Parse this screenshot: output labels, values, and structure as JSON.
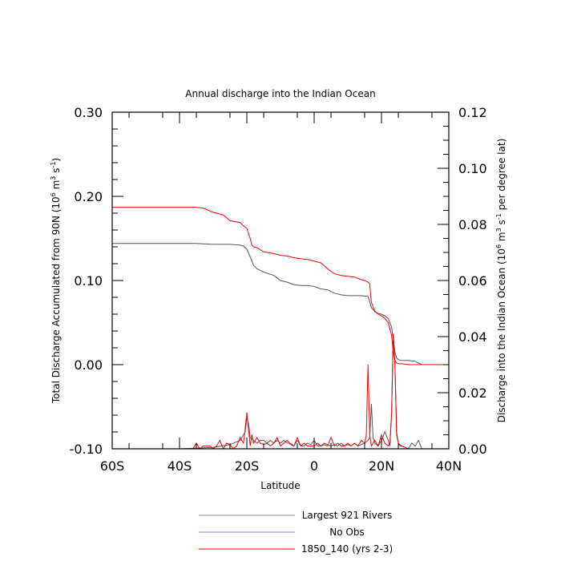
{
  "chart_data": {
    "type": "line",
    "title": "Annual discharge into the Indian Ocean",
    "xlabel": "Latitude",
    "ylabel_left": "Total Discharge Accumulated from 90N (10^6 m^3 s^-1)",
    "ylabel_right": "Discharge into the Indian Ocean (10^6 m^3 s^-1 per degree lat)",
    "xlim": [
      -60,
      40
    ],
    "ylim_left": [
      -0.1,
      0.3
    ],
    "ylim_right": [
      0.0,
      0.12
    ],
    "x_ticks": [
      {
        "value": -60,
        "label": "60S"
      },
      {
        "value": -40,
        "label": "40S"
      },
      {
        "value": -20,
        "label": "20S"
      },
      {
        "value": 0,
        "label": "0"
      },
      {
        "value": 20,
        "label": "20N"
      },
      {
        "value": 40,
        "label": "40N"
      }
    ],
    "y_left_ticks": [
      {
        "value": -0.1,
        "label": "-0.10"
      },
      {
        "value": 0.0,
        "label": "0.00"
      },
      {
        "value": 0.1,
        "label": "0.10"
      },
      {
        "value": 0.2,
        "label": "0.20"
      },
      {
        "value": 0.3,
        "label": "0.30"
      }
    ],
    "y_right_ticks": [
      {
        "value": 0.0,
        "label": "0.00"
      },
      {
        "value": 0.02,
        "label": "0.02"
      },
      {
        "value": 0.04,
        "label": "0.04"
      },
      {
        "value": 0.06,
        "label": "0.06"
      },
      {
        "value": 0.08,
        "label": "0.08"
      },
      {
        "value": 0.1,
        "label": "0.10"
      },
      {
        "value": 0.12,
        "label": "0.12"
      }
    ],
    "legend": {
      "placement": "bottom",
      "entries": [
        {
          "label": "Largest 921 Rivers",
          "color": "#888888"
        },
        {
          "label": "No Obs",
          "color": "#8080ff"
        },
        {
          "label": "1850_140 (yrs 2-3)",
          "color": "#ff0000"
        }
      ]
    },
    "series": [
      {
        "name": "Largest 921 Rivers",
        "axis": "left",
        "color": "#555555",
        "x": [
          -60,
          -50,
          -40,
          -35,
          -30,
          -25,
          -22,
          -21,
          -20,
          -19,
          -18,
          -17,
          -15,
          -12,
          -10,
          -8,
          -6,
          -4,
          -2,
          0,
          2,
          4,
          6,
          8,
          10,
          12,
          14,
          16,
          16.5,
          17,
          18,
          19,
          20,
          21,
          22,
          23,
          23.5,
          24,
          24.5,
          25,
          26,
          28,
          30,
          31,
          32,
          34,
          36,
          38,
          40
        ],
        "y": [
          0.144,
          0.144,
          0.144,
          0.144,
          0.143,
          0.143,
          0.142,
          0.141,
          0.137,
          0.128,
          0.118,
          0.114,
          0.11,
          0.106,
          0.1,
          0.098,
          0.095,
          0.094,
          0.094,
          0.093,
          0.09,
          0.089,
          0.085,
          0.083,
          0.082,
          0.082,
          0.082,
          0.081,
          0.075,
          0.068,
          0.063,
          0.061,
          0.06,
          0.058,
          0.055,
          0.045,
          0.03,
          0.015,
          0.008,
          0.006,
          0.005,
          0.005,
          0.004,
          0.002,
          0.0,
          0.0,
          0.0,
          0.0,
          0.0
        ]
      },
      {
        "name": "1850_140 (yrs 2-3)",
        "axis": "left",
        "color": "#ff0000",
        "x": [
          -60,
          -50,
          -40,
          -35,
          -33,
          -30,
          -28,
          -27,
          -25,
          -22,
          -21,
          -20,
          -19,
          -18.5,
          -18,
          -17,
          -15,
          -12,
          -10,
          -8,
          -6,
          -4,
          -2,
          0,
          2,
          4,
          6,
          8,
          10,
          12,
          14,
          15,
          16,
          16.5,
          17,
          18,
          19,
          20,
          21,
          22,
          23,
          23.5,
          24,
          24.5,
          25,
          26,
          28,
          30,
          32,
          34,
          36,
          38,
          40
        ],
        "y": [
          0.187,
          0.187,
          0.187,
          0.187,
          0.186,
          0.181,
          0.179,
          0.178,
          0.171,
          0.169,
          0.165,
          0.162,
          0.15,
          0.142,
          0.14,
          0.139,
          0.134,
          0.132,
          0.13,
          0.129,
          0.127,
          0.126,
          0.125,
          0.123,
          0.121,
          0.114,
          0.108,
          0.106,
          0.105,
          0.104,
          0.101,
          0.1,
          0.098,
          0.096,
          0.074,
          0.064,
          0.06,
          0.058,
          0.055,
          0.05,
          0.035,
          0.015,
          0.005,
          0.002,
          0.001,
          0.001,
          0.0,
          0.0,
          0.0,
          0.0,
          0.0,
          0.0,
          0.0
        ]
      },
      {
        "name": "Largest 921 Rivers",
        "axis": "right",
        "color": "#555555",
        "x": [
          -60,
          -40,
          -30,
          -25,
          -22,
          -20.5,
          -20,
          -19.5,
          -19,
          -18,
          -17,
          -16,
          -15,
          -14,
          -13,
          -12,
          -11,
          -10,
          -9,
          -8,
          -7,
          -6,
          -5,
          -4,
          -3,
          -2,
          -1,
          0,
          1,
          2,
          3,
          4,
          5,
          6,
          7,
          8,
          9,
          10,
          11,
          12,
          13,
          14,
          15,
          16,
          16.5,
          17,
          17.5,
          18,
          19,
          20,
          21,
          22,
          22.5,
          23,
          23.5,
          24,
          24.5,
          25,
          26,
          28,
          29,
          30,
          31,
          32,
          34,
          36,
          40
        ],
        "y": [
          0.0,
          0.0,
          0.0005,
          0.0015,
          0.003,
          0.006,
          0.011,
          0.009,
          0.004,
          0.003,
          0.002,
          0.003,
          0.003,
          0.002,
          0.003,
          0.002,
          0.003,
          0.002,
          0.003,
          0.002,
          0.002,
          0.001,
          0.003,
          0.001,
          0.001,
          0.002,
          0.0015,
          0.003,
          0.001,
          0.001,
          0.002,
          0.0015,
          0.001,
          0.0015,
          0.001,
          0.002,
          0.001,
          0.0015,
          0.001,
          0.002,
          0.001,
          0.0015,
          0.002,
          0.003,
          0.004,
          0.016,
          0.004,
          0.002,
          0.001,
          0.003,
          0.006,
          0.003,
          0.001,
          0.013,
          0.04,
          0.03,
          0.006,
          0.002,
          0.001,
          0.0,
          0.002,
          0.001,
          0.003,
          0.0,
          0.0,
          0.0,
          0.0
        ]
      },
      {
        "name": "1850_140 (yrs 2-3)",
        "axis": "right",
        "color": "#ff0000",
        "x": [
          -60,
          -40,
          -36,
          -35,
          -34,
          -33,
          -31,
          -30,
          -29,
          -28,
          -27,
          -26,
          -25,
          -24,
          -23,
          -22,
          -21,
          -20.5,
          -20,
          -19.5,
          -19,
          -18.5,
          -18,
          -17,
          -16,
          -15,
          -14,
          -13,
          -12,
          -11,
          -10,
          -9,
          -8,
          -7,
          -6,
          -5,
          -4,
          -3,
          -2,
          -1,
          0,
          1,
          2,
          3,
          4,
          5,
          6,
          7,
          8,
          9,
          10,
          11,
          12,
          13,
          14,
          15,
          15.5,
          16,
          16.5,
          17,
          17.5,
          18,
          19,
          20,
          21,
          22,
          22.5,
          23,
          23.5,
          24,
          24.5,
          25,
          25.5,
          26,
          28,
          30,
          40
        ],
        "y": [
          0.0,
          0.0,
          0.0,
          0.002,
          0.0,
          0.001,
          0.001,
          0.0,
          0.001,
          0.003,
          0.0,
          0.002,
          0.0015,
          0.0,
          0.001,
          0.004,
          0.002,
          0.007,
          0.013,
          0.007,
          0.001,
          0.005,
          0.002,
          0.004,
          0.002,
          0.0015,
          0.002,
          0.001,
          0.002,
          0.004,
          0.001,
          0.002,
          0.003,
          0.0015,
          0.001,
          0.004,
          0.001,
          0.002,
          0.001,
          0.001,
          0.001,
          0.002,
          0.001,
          0.0015,
          0.001,
          0.004,
          0.001,
          0.002,
          0.001,
          0.001,
          0.002,
          0.001,
          0.002,
          0.001,
          0.003,
          0.002,
          0.005,
          0.03,
          0.005,
          0.001,
          0.002,
          0.003,
          0.001,
          0.005,
          0.002,
          0.001,
          0.002,
          0.012,
          0.041,
          0.03,
          0.005,
          0.002,
          0.001,
          0.001,
          0.0,
          0.0,
          0.0
        ]
      }
    ]
  }
}
